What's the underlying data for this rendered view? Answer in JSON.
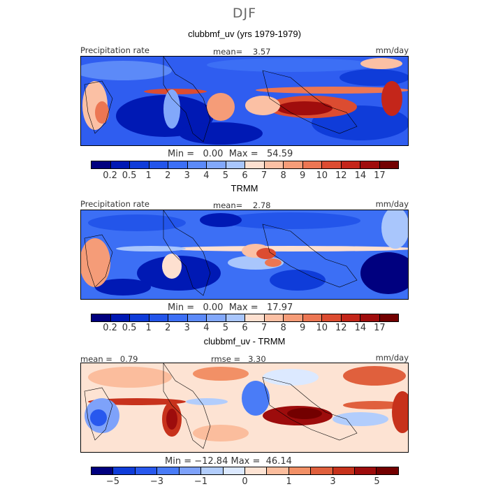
{
  "season": "DJF",
  "panels": [
    {
      "title": "clubbmf_uv (yrs 1979-1979)",
      "left_label": "Precipitation rate",
      "mean_label": "mean=",
      "mean_value": "3.57",
      "units": "mm/day",
      "min_label": "Min =",
      "min_value": "0.00",
      "max_label": "Max =",
      "max_value": "54.59",
      "tick_labels": [
        "0.2",
        "0.5",
        "1",
        "2",
        "3",
        "4",
        "5",
        "6",
        "7",
        "8",
        "9",
        "10",
        "12",
        "14",
        "17"
      ]
    },
    {
      "title": "TRMM",
      "left_label": "Precipitation rate",
      "mean_label": "mean=",
      "mean_value": "2.78",
      "units": "mm/day",
      "min_label": "Min =",
      "min_value": "0.00",
      "max_label": "Max =",
      "max_value": "17.97",
      "tick_labels": [
        "0.2",
        "0.5",
        "1",
        "2",
        "3",
        "4",
        "5",
        "6",
        "7",
        "8",
        "9",
        "10",
        "12",
        "14",
        "17"
      ]
    },
    {
      "title": "clubbmf_uv - TRMM",
      "mean_label": "mean =",
      "mean_value": "0.79",
      "rmse_label": "rmse =",
      "rmse_value": "3.30",
      "units": "mm/day",
      "min_label": "Min =",
      "min_value": "−12.84",
      "max_label": "Max =",
      "max_value": "46.14",
      "tick_labels": [
        "−5",
        "−3",
        "−1",
        "0",
        "1",
        "3",
        "5"
      ]
    }
  ],
  "colors": {
    "abs_scale": [
      "#00007f",
      "#0019b4",
      "#0f3cd9",
      "#2355ea",
      "#3c6ff5",
      "#5c8af8",
      "#82a8fa",
      "#a9c6fc",
      "#fde0d0",
      "#fbc0a4",
      "#f59c78",
      "#ec7653",
      "#dc4c31",
      "#c4261a",
      "#a00d0d",
      "#730000"
    ],
    "diff_scale": [
      "#00007f",
      "#0f3cd9",
      "#2858ee",
      "#4a7cf7",
      "#7ea2fa",
      "#b2cdfc",
      "#dce9ff",
      "#fde3d3",
      "#fbbd9d",
      "#f29066",
      "#e0603d",
      "#c7321c",
      "#9d0c0c",
      "#730000"
    ]
  }
}
